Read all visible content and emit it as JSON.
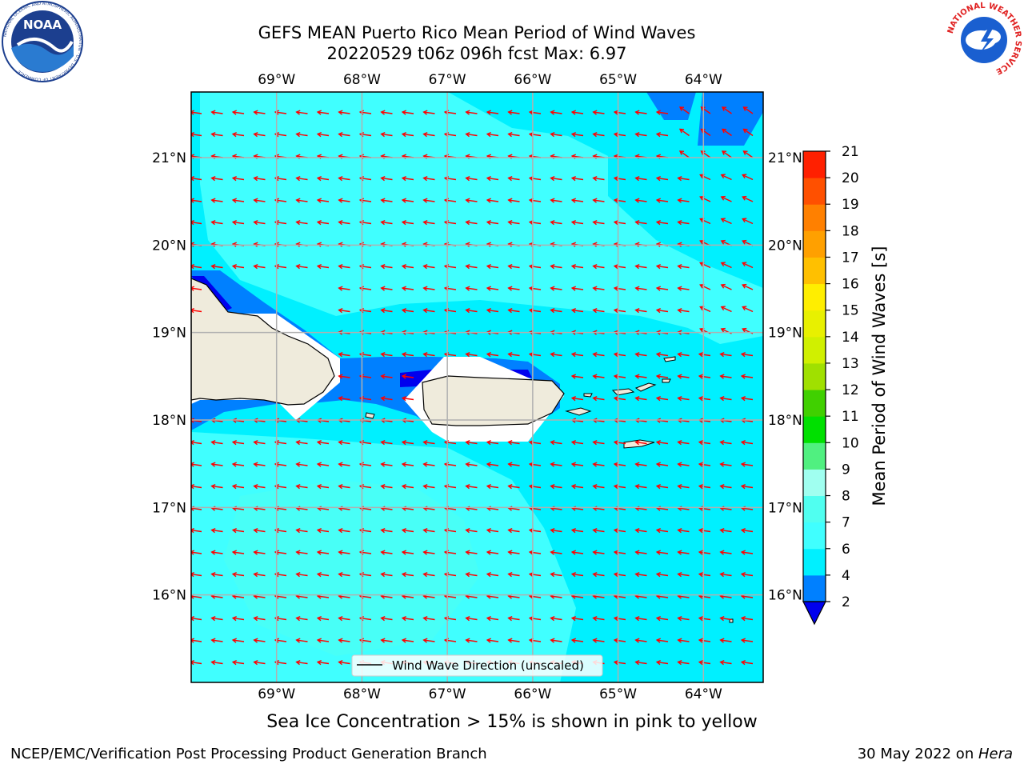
{
  "title": {
    "line1": "GEFS MEAN Puerto Rico Mean Period of Wind Waves",
    "line2": "20220529 t06z 096h fcst   Max: 6.97"
  },
  "logos": {
    "left": {
      "icon": "noaa-logo-icon",
      "text": "NOAA",
      "ring_text": "NATIONAL OCEANIC AND ATMOSPHERIC ADMINISTRATION · U.S. DEPARTMENT OF COMMERCE"
    },
    "right": {
      "icon": "nws-logo-icon",
      "ring_text": "NATIONAL WEATHER SERVICE"
    }
  },
  "map": {
    "lon_ticks": [
      "69°W",
      "68°W",
      "67°W",
      "66°W",
      "65°W",
      "64°W"
    ],
    "lon_values": [
      -69,
      -68,
      -67,
      -66,
      -65,
      -64
    ],
    "lat_ticks": [
      "21°N",
      "20°N",
      "19°N",
      "18°N",
      "17°N",
      "16°N"
    ],
    "lat_values": [
      21,
      20,
      19,
      18,
      17,
      16
    ],
    "lon_range": [
      -70.0,
      -63.3
    ],
    "lat_range": [
      15.0,
      21.75
    ],
    "grid": true,
    "legend": {
      "label": "Wind Wave Direction (unscaled)",
      "placement": "bottom-center"
    },
    "arrow_color": "#ff0000",
    "land_color": "#efebdc",
    "arrow_direction": "toward west, slight southward tilt; southwest in the northeast corner"
  },
  "colorbar": {
    "label": "Mean Period of Wind Waves [s]",
    "ticks": [
      "21",
      "20",
      "19",
      "18",
      "17",
      "16",
      "15",
      "14",
      "13",
      "12",
      "11",
      "10",
      "9",
      "8",
      "7",
      "6",
      "4",
      "2"
    ],
    "levels": [
      {
        "min": 0,
        "max": 2,
        "color": "#0000ee"
      },
      {
        "min": 2,
        "max": 4,
        "color": "#0080ff"
      },
      {
        "min": 4,
        "max": 6,
        "color": "#00f0ff"
      },
      {
        "min": 6,
        "max": 7,
        "color": "#40ffff"
      },
      {
        "min": 7,
        "max": 8,
        "color": "#50fff0"
      },
      {
        "min": 8,
        "max": 9,
        "color": "#a0fff0"
      },
      {
        "min": 9,
        "max": 10,
        "color": "#50f080"
      },
      {
        "min": 10,
        "max": 11,
        "color": "#00e000"
      },
      {
        "min": 11,
        "max": 12,
        "color": "#40d000"
      },
      {
        "min": 12,
        "max": 13,
        "color": "#a0e000"
      },
      {
        "min": 13,
        "max": 14,
        "color": "#d0f000"
      },
      {
        "min": 14,
        "max": 15,
        "color": "#e8f000"
      },
      {
        "min": 15,
        "max": 16,
        "color": "#ffee00"
      },
      {
        "min": 16,
        "max": 17,
        "color": "#ffc000"
      },
      {
        "min": 17,
        "max": 18,
        "color": "#ffa000"
      },
      {
        "min": 18,
        "max": 19,
        "color": "#ff8000"
      },
      {
        "min": 19,
        "max": 20,
        "color": "#ff5000"
      },
      {
        "min": 20,
        "max": 21,
        "color": "#ff2000"
      }
    ],
    "extend": "min"
  },
  "caption": "Sea Ice Concentration > 15% is shown in pink to yellow",
  "footer": {
    "left": "NCEP/EMC/Verification Post Processing Product Generation Branch",
    "right_prefix": "30 May 2022 on ",
    "right_machine": "Hera"
  }
}
